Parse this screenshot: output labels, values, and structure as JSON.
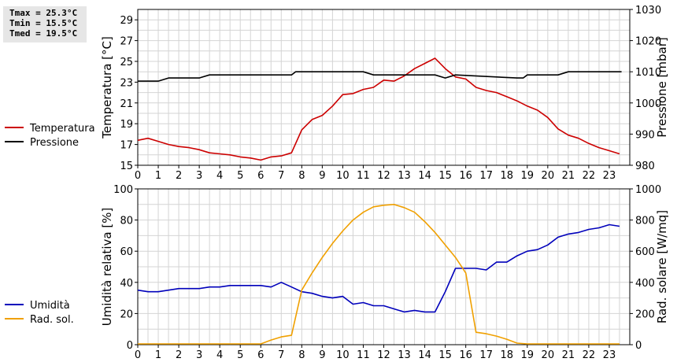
{
  "stats": {
    "tmax": "Tmax = 25.3°C",
    "tmin": "Tmin = 15.5°C",
    "tmed": "Tmed = 19.5°C"
  },
  "chart_data": [
    {
      "type": "line",
      "title": "",
      "xlabel": "",
      "ylabel_left": "Temperatura [°C]",
      "ylabel_right": "Pressione [mbar]",
      "xlim": [
        0,
        24
      ],
      "xticks": [
        0,
        1,
        2,
        3,
        4,
        5,
        6,
        7,
        8,
        9,
        10,
        11,
        12,
        13,
        14,
        15,
        16,
        17,
        18,
        19,
        20,
        21,
        22,
        23
      ],
      "ylim_left": [
        15,
        30
      ],
      "yticks_left": [
        15,
        17,
        19,
        21,
        23,
        25,
        27,
        29
      ],
      "ylim_right": [
        980,
        1030
      ],
      "yticks_right": [
        980,
        990,
        1000,
        1010,
        1020,
        1030
      ],
      "grid": true,
      "legend_position": "left",
      "series": [
        {
          "name": "Temperatura",
          "color": "#cc0000",
          "axis": "left",
          "x": [
            0,
            0.5,
            1,
            1.5,
            2,
            2.5,
            3,
            3.5,
            4,
            4.5,
            5,
            5.5,
            6,
            6.5,
            7,
            7.5,
            8,
            8.5,
            9,
            9.5,
            10,
            10.5,
            11,
            11.5,
            12,
            12.5,
            13,
            13.5,
            14,
            14.5,
            15,
            15.5,
            16,
            16.5,
            17,
            17.5,
            18,
            18.5,
            19,
            19.5,
            20,
            20.5,
            21,
            21.5,
            22,
            22.5,
            23,
            23.5
          ],
          "y": [
            17.4,
            17.6,
            17.3,
            17.0,
            16.8,
            16.7,
            16.5,
            16.2,
            16.1,
            16.0,
            15.8,
            15.7,
            15.5,
            15.8,
            15.9,
            16.2,
            18.4,
            19.4,
            19.8,
            20.7,
            21.8,
            21.9,
            22.3,
            22.5,
            23.2,
            23.1,
            23.6,
            24.3,
            24.8,
            25.3,
            24.3,
            23.5,
            23.3,
            22.5,
            22.2,
            22.0,
            21.6,
            21.2,
            20.7,
            20.3,
            19.6,
            18.5,
            17.9,
            17.6,
            17.1,
            16.7,
            16.4,
            16.1
          ]
        },
        {
          "name": "Pressione",
          "color": "#000000",
          "axis": "right",
          "x": [
            0,
            1,
            1.5,
            3,
            3.5,
            7.5,
            7.7,
            11,
            11.5,
            14.5,
            15,
            15.5,
            18.5,
            18.8,
            19,
            20.5,
            21,
            23.6
          ],
          "y": [
            1007,
            1007,
            1008,
            1008,
            1009,
            1009,
            1010,
            1010,
            1009,
            1009,
            1008,
            1009,
            1008,
            1008,
            1009,
            1009,
            1010,
            1010
          ]
        }
      ]
    },
    {
      "type": "line",
      "title": "",
      "xlabel": "",
      "ylabel_left": "Umidità relativa [%]",
      "ylabel_right": "Rad. solare [W/mq]",
      "xlim": [
        0,
        24
      ],
      "xticks": [
        0,
        1,
        2,
        3,
        4,
        5,
        6,
        7,
        8,
        9,
        10,
        11,
        12,
        13,
        14,
        15,
        16,
        17,
        18,
        19,
        20,
        21,
        22,
        23
      ],
      "ylim_left": [
        0,
        100
      ],
      "yticks_left": [
        0,
        20,
        40,
        60,
        80,
        100
      ],
      "ylim_right": [
        0,
        1000
      ],
      "yticks_right": [
        0,
        200,
        400,
        600,
        800,
        1000
      ],
      "grid": true,
      "legend_position": "left",
      "series": [
        {
          "name": "Umidità",
          "color": "#0000bb",
          "axis": "left",
          "x": [
            0,
            0.5,
            1,
            1.5,
            2,
            2.5,
            3,
            3.5,
            4,
            4.5,
            5,
            5.5,
            6,
            6.5,
            7,
            7.5,
            8,
            8.5,
            9,
            9.5,
            10,
            10.5,
            11,
            11.5,
            12,
            12.5,
            13,
            13.5,
            14,
            14.5,
            15,
            15.5,
            16,
            16.5,
            17,
            17.5,
            18,
            18.5,
            19,
            19.5,
            20,
            20.5,
            21,
            21.5,
            22,
            22.5,
            23,
            23.5
          ],
          "y": [
            35,
            34,
            34,
            35,
            36,
            36,
            36,
            37,
            37,
            38,
            38,
            38,
            38,
            37,
            40,
            37,
            34,
            33,
            31,
            30,
            31,
            26,
            27,
            25,
            25,
            23,
            21,
            22,
            21,
            21,
            34,
            49,
            49,
            49,
            48,
            53,
            53,
            57,
            60,
            61,
            64,
            69,
            71,
            72,
            74,
            75,
            77,
            76
          ]
        },
        {
          "name": "Rad. sol.",
          "color": "#f0a000",
          "axis": "right",
          "x": [
            0,
            1,
            2,
            3,
            4,
            5,
            6,
            6.5,
            7,
            7.5,
            8,
            8.5,
            9,
            9.5,
            10,
            10.5,
            11,
            11.5,
            12,
            12.5,
            13,
            13.5,
            14,
            14.5,
            15,
            15.5,
            16,
            16.5,
            17,
            17.5,
            18,
            18.5,
            19,
            20,
            21,
            22,
            23,
            23.5
          ],
          "y": [
            5,
            5,
            5,
            5,
            5,
            5,
            5,
            30,
            50,
            60,
            350,
            460,
            560,
            650,
            730,
            800,
            850,
            885,
            895,
            900,
            880,
            850,
            790,
            720,
            640,
            560,
            460,
            80,
            70,
            55,
            35,
            10,
            5,
            5,
            5,
            5,
            5,
            5
          ]
        }
      ]
    }
  ]
}
